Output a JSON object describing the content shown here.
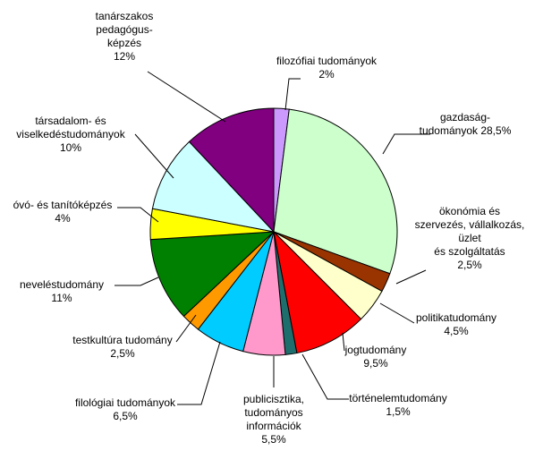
{
  "chart_data": {
    "type": "pie",
    "title": "",
    "start": "top, clockwise",
    "slices": [
      {
        "lines": [
          "filozófiai tudományok",
          "2%"
        ],
        "value": 2,
        "color": "#cc99ff"
      },
      {
        "lines": [
          "gazdaság-",
          "tudományok 28,5%"
        ],
        "value": 28.5,
        "color": "#ccffcc"
      },
      {
        "lines": [
          "ökonómia és",
          "szervezés, vállalkozás,",
          "üzlet",
          "és szolgáltatás",
          "2,5%"
        ],
        "value": 2.5,
        "color": "#993300"
      },
      {
        "lines": [
          "politikatudomány",
          "4,5%"
        ],
        "value": 4.5,
        "color": "#ffffcc"
      },
      {
        "lines": [
          "jogtudomány",
          "9,5%"
        ],
        "value": 9.5,
        "color": "#ff0000"
      },
      {
        "lines": [
          "történelemtudomány",
          "1,5%"
        ],
        "value": 1.5,
        "color": "#1f6e6e"
      },
      {
        "lines": [
          "publicisztika,",
          "tudományos",
          "információk",
          "5,5%"
        ],
        "value": 5.5,
        "color": "#ff99cc"
      },
      {
        "lines": [
          "filológiai tudományok",
          "6,5%"
        ],
        "value": 6.5,
        "color": "#00ccff"
      },
      {
        "lines": [
          "testkultúra tudomány",
          "2,5%"
        ],
        "value": 2.5,
        "color": "#ff9900"
      },
      {
        "lines": [
          "neveléstudomány",
          "11%"
        ],
        "value": 11,
        "color": "#008000"
      },
      {
        "lines": [
          "óvó- és tanítóképzés",
          "4%"
        ],
        "value": 4,
        "color": "#ffff00"
      },
      {
        "lines": [
          "társadalom- és",
          "viselkedéstudományok",
          "10%"
        ],
        "value": 10,
        "color": "#ccffff"
      },
      {
        "lines": [
          "tanárszakos",
          "pedagógus-",
          "képzés",
          "12%"
        ],
        "value": 12,
        "color": "#800080"
      }
    ]
  }
}
